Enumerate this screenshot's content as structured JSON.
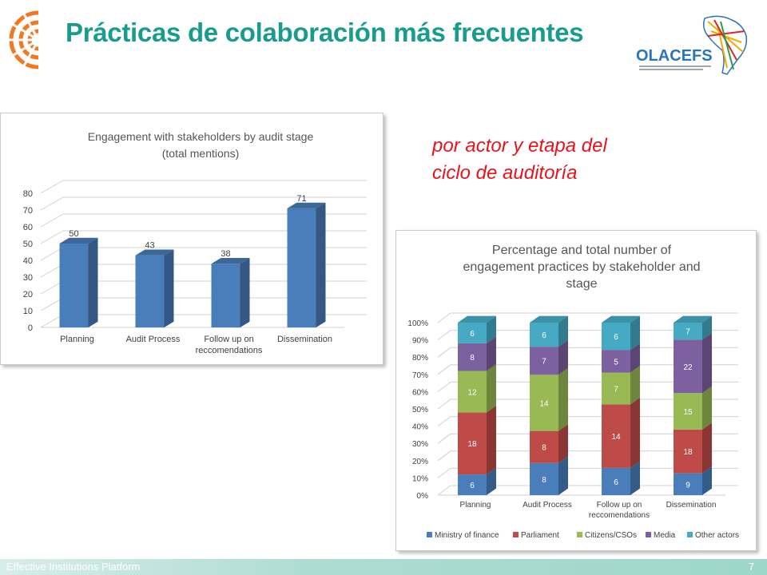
{
  "slide": {
    "title": "Prácticas de colaboración más frecuentes",
    "subtitle_line1": "por actor y etapa del",
    "subtitle_line2": "ciclo de auditoría",
    "logo_text": "OLACEFS",
    "footer_left": "Effective Institutions Platform",
    "page_number": "7"
  },
  "colors": {
    "title": "#1a9c8c",
    "subtitle": "#e8131b",
    "bar_blue": "#4a7ebb",
    "ministry": "#4a7ebb",
    "parliament": "#be4b48",
    "citizens": "#98b954",
    "media": "#7d60a0",
    "other": "#46aac5"
  },
  "chart_data": [
    {
      "type": "bar",
      "title": "Engagement with stakeholders by audit stage",
      "subtitle": "(total mentions)",
      "categories": [
        "Planning",
        "Audit Process",
        "Follow up on reccomendations",
        "Dissemination"
      ],
      "category_lines": [
        [
          "Planning"
        ],
        [
          "Audit Process"
        ],
        [
          "Follow up on",
          "reccomendations"
        ],
        [
          "Dissemination"
        ]
      ],
      "values": [
        50,
        43,
        38,
        71
      ],
      "ylim": [
        0,
        80
      ],
      "yticks": [
        "0",
        "10",
        "20",
        "30",
        "40",
        "50",
        "60",
        "70",
        "80"
      ],
      "grid": true,
      "legend": "none"
    },
    {
      "type": "bar",
      "stacked": "percent",
      "title_lines": [
        "Percentage and total number of",
        "engagement practices by stakeholder and",
        "stage"
      ],
      "categories": [
        "Planning",
        "Audit Process",
        "Follow up on reccomendations",
        "Dissemination"
      ],
      "category_lines": [
        [
          "Planning"
        ],
        [
          "Audit Process"
        ],
        [
          "Follow up on",
          "reccomendations"
        ],
        [
          "Dissemination"
        ]
      ],
      "yticks": [
        "0%",
        "10%",
        "20%",
        "30%",
        "40%",
        "50%",
        "60%",
        "70%",
        "80%",
        "90%",
        "100%"
      ],
      "series": [
        {
          "name": "Ministry of finance",
          "values": [
            6,
            8,
            6,
            9
          ],
          "color": "#4a7ebb"
        },
        {
          "name": "Parliament",
          "values": [
            18,
            8,
            14,
            18
          ],
          "color": "#be4b48"
        },
        {
          "name": "Citizens/CSOs",
          "values": [
            12,
            14,
            7,
            15
          ],
          "color": "#98b954"
        },
        {
          "name": "Media",
          "values": [
            8,
            7,
            5,
            22
          ],
          "color": "#7d60a0"
        },
        {
          "name": "Other actors",
          "values": [
            6,
            6,
            6,
            7
          ],
          "color": "#46aac5"
        }
      ],
      "legend": "bottom",
      "grid": true
    }
  ]
}
